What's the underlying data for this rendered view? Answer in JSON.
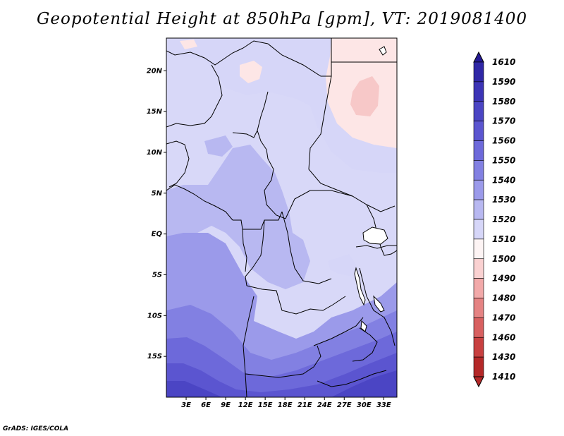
{
  "title": "Geopotential Height at 850hPa [gpm], VT: 2019081400",
  "footer": "GrADS: IGES/COLA",
  "map": {
    "lat_labels": [
      "20N",
      "15N",
      "10N",
      "5N",
      "EQ",
      "5S",
      "10S",
      "15S"
    ],
    "lon_labels": [
      "3E",
      "6E",
      "9E",
      "12E",
      "15E",
      "18E",
      "21E",
      "24E",
      "27E",
      "30E",
      "33E"
    ],
    "extent": {
      "lon": [
        0,
        35
      ],
      "lat": [
        -20,
        24
      ]
    }
  },
  "colorbar": {
    "labels": [
      "1610",
      "1590",
      "1580",
      "1570",
      "1560",
      "1550",
      "1540",
      "1530",
      "1520",
      "1510",
      "1500",
      "1490",
      "1480",
      "1470",
      "1460",
      "1430",
      "1410"
    ],
    "colors": [
      "#241a94",
      "#2f27a6",
      "#3c34b6",
      "#4b45c4",
      "#5b55d0",
      "#6d69da",
      "#8280e2",
      "#9b9aea",
      "#b8b8f1",
      "#d6d6f8",
      "#fdf4f4",
      "#fad1d1",
      "#f2a9a9",
      "#e58383",
      "#d86060",
      "#c84040",
      "#b42828"
    ]
  },
  "colors": {
    "land_base": "#d8d8f8",
    "desert_low": "#fde6e6",
    "desert_min": "#f7c8c8",
    "border": "#000000"
  }
}
